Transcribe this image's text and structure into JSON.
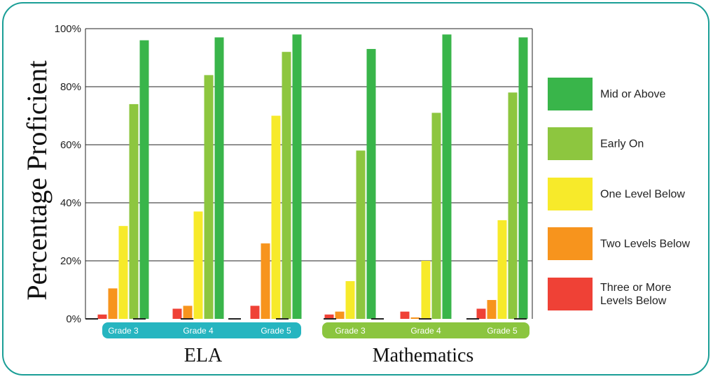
{
  "chart_data": {
    "type": "bar",
    "ylabel": "Percentage Proficient",
    "ylim": [
      0,
      100
    ],
    "yticks": [
      "0%",
      "20%",
      "40%",
      "60%",
      "80%",
      "100%"
    ],
    "grid": true,
    "legend_position": "right",
    "groups": [
      {
        "name": "ELA",
        "color": "#26b5c0",
        "categories": [
          "Grade 3",
          "Grade 4",
          "Grade 5"
        ]
      },
      {
        "name": "Mathematics",
        "color": "#8bc53f",
        "categories": [
          "Grade 3",
          "Grade 4",
          "Grade 5"
        ]
      }
    ],
    "series": [
      {
        "name": "Three or More Levels Below",
        "color": "#ef4136",
        "values": [
          1.5,
          3.5,
          4.5,
          1.5,
          2.5,
          3.5
        ]
      },
      {
        "name": "Two Levels Below",
        "color": "#f7941d",
        "values": [
          10.5,
          4.5,
          26,
          2.5,
          0.5,
          6.5
        ]
      },
      {
        "name": "One Level Below",
        "color": "#f7ea2a",
        "values": [
          32,
          37,
          70,
          13,
          20,
          34
        ]
      },
      {
        "name": "Early On",
        "color": "#8dc63f",
        "values": [
          74,
          84,
          92,
          58,
          71,
          78
        ]
      },
      {
        "name": "Mid or Above",
        "color": "#39b54a",
        "values": [
          96,
          97,
          98,
          93,
          98,
          97
        ]
      }
    ]
  }
}
